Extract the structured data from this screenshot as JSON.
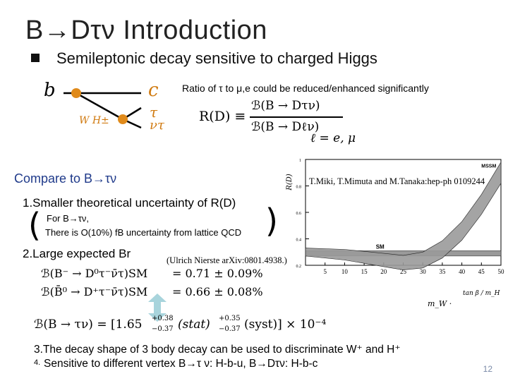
{
  "slide": {
    "title": "B→Dτν Introduction",
    "subtitle": "Semileptonic decay sensitive to charged Higgs",
    "page_number": "12"
  },
  "feynman": {
    "b": "b",
    "c": "c",
    "tau": "τ",
    "nu_tau": "ντ",
    "boson": "W H±"
  },
  "ratio": {
    "note": "Ratio of τ to μ,e could be reduced/enhanced significantly",
    "lhs": "R(D) ≡",
    "num": "ℬ(B → Dτν)",
    "den": "ℬ(B → Dℓν)",
    "ell": "ℓ = e, μ"
  },
  "compare": {
    "heading": "Compare to B→τν",
    "item1": "1.Smaller theoretical uncertainty of R(D)",
    "item1_sub1": "For B→τν,",
    "item1_sub2": "There is O(10%) fB uncertainty from lattice QCD",
    "item2": "2.Large expected Br",
    "ulrich": "(Ulrich Nierste arXiv:0801.4938.)",
    "eq1_lhs": "ℬ(B⁻ → D⁰τ⁻ν̄τ)SM",
    "eq1_rhs": "= 0.71 ± 0.09%",
    "eq2_lhs": "ℬ(B̄⁰ → D⁺τ⁻ν̄τ)SM",
    "eq2_rhs": "= 0.66 ± 0.08%",
    "eq3_lhs": "ℬ(B → τν) = [1.65",
    "eq3_e1": "+0.38",
    "eq3_e2": "−0.37",
    "eq3_mid": "(stat)",
    "eq3_e3": "+0.35",
    "eq3_e4": "−0.37",
    "eq3_end": "(syst)] × 10⁻⁴",
    "item3": "3.The decay shape of 3 body decay can be used to discriminate W⁺ and H⁺",
    "item4_num": "4.",
    "item4": "Sensitive to different vertex B→τ ν: H-b-u, B→Dτν: H-b-c"
  },
  "chart_data": {
    "type": "line",
    "ylabel": "R(D)",
    "xlabel": "tan β / m_H",
    "x_tick_prefix": "m_W ·",
    "xlim": [
      0,
      50
    ],
    "ylim": [
      0.2,
      1.0
    ],
    "x_ticks": [
      "5",
      "10",
      "15",
      "20",
      "25",
      "30",
      "35",
      "40",
      "45",
      "50"
    ],
    "y_ticks": [
      "1",
      "0.8",
      "0.6",
      "0.4",
      "0.2"
    ],
    "reference": "T.Miki, T.Mimuta and M.Tanaka:hep-ph 0109244",
    "series": [
      {
        "name": "SM",
        "x": [
          0,
          50
        ],
        "y": [
          0.29,
          0.29
        ]
      },
      {
        "name": "MSSM",
        "x": [
          0,
          10,
          20,
          25,
          30,
          35,
          40,
          45,
          50
        ],
        "y": [
          0.3,
          0.28,
          0.24,
          0.22,
          0.24,
          0.32,
          0.46,
          0.66,
          0.9
        ]
      }
    ],
    "colors": {
      "band": "#9a9a9a",
      "line": "#222222"
    }
  }
}
